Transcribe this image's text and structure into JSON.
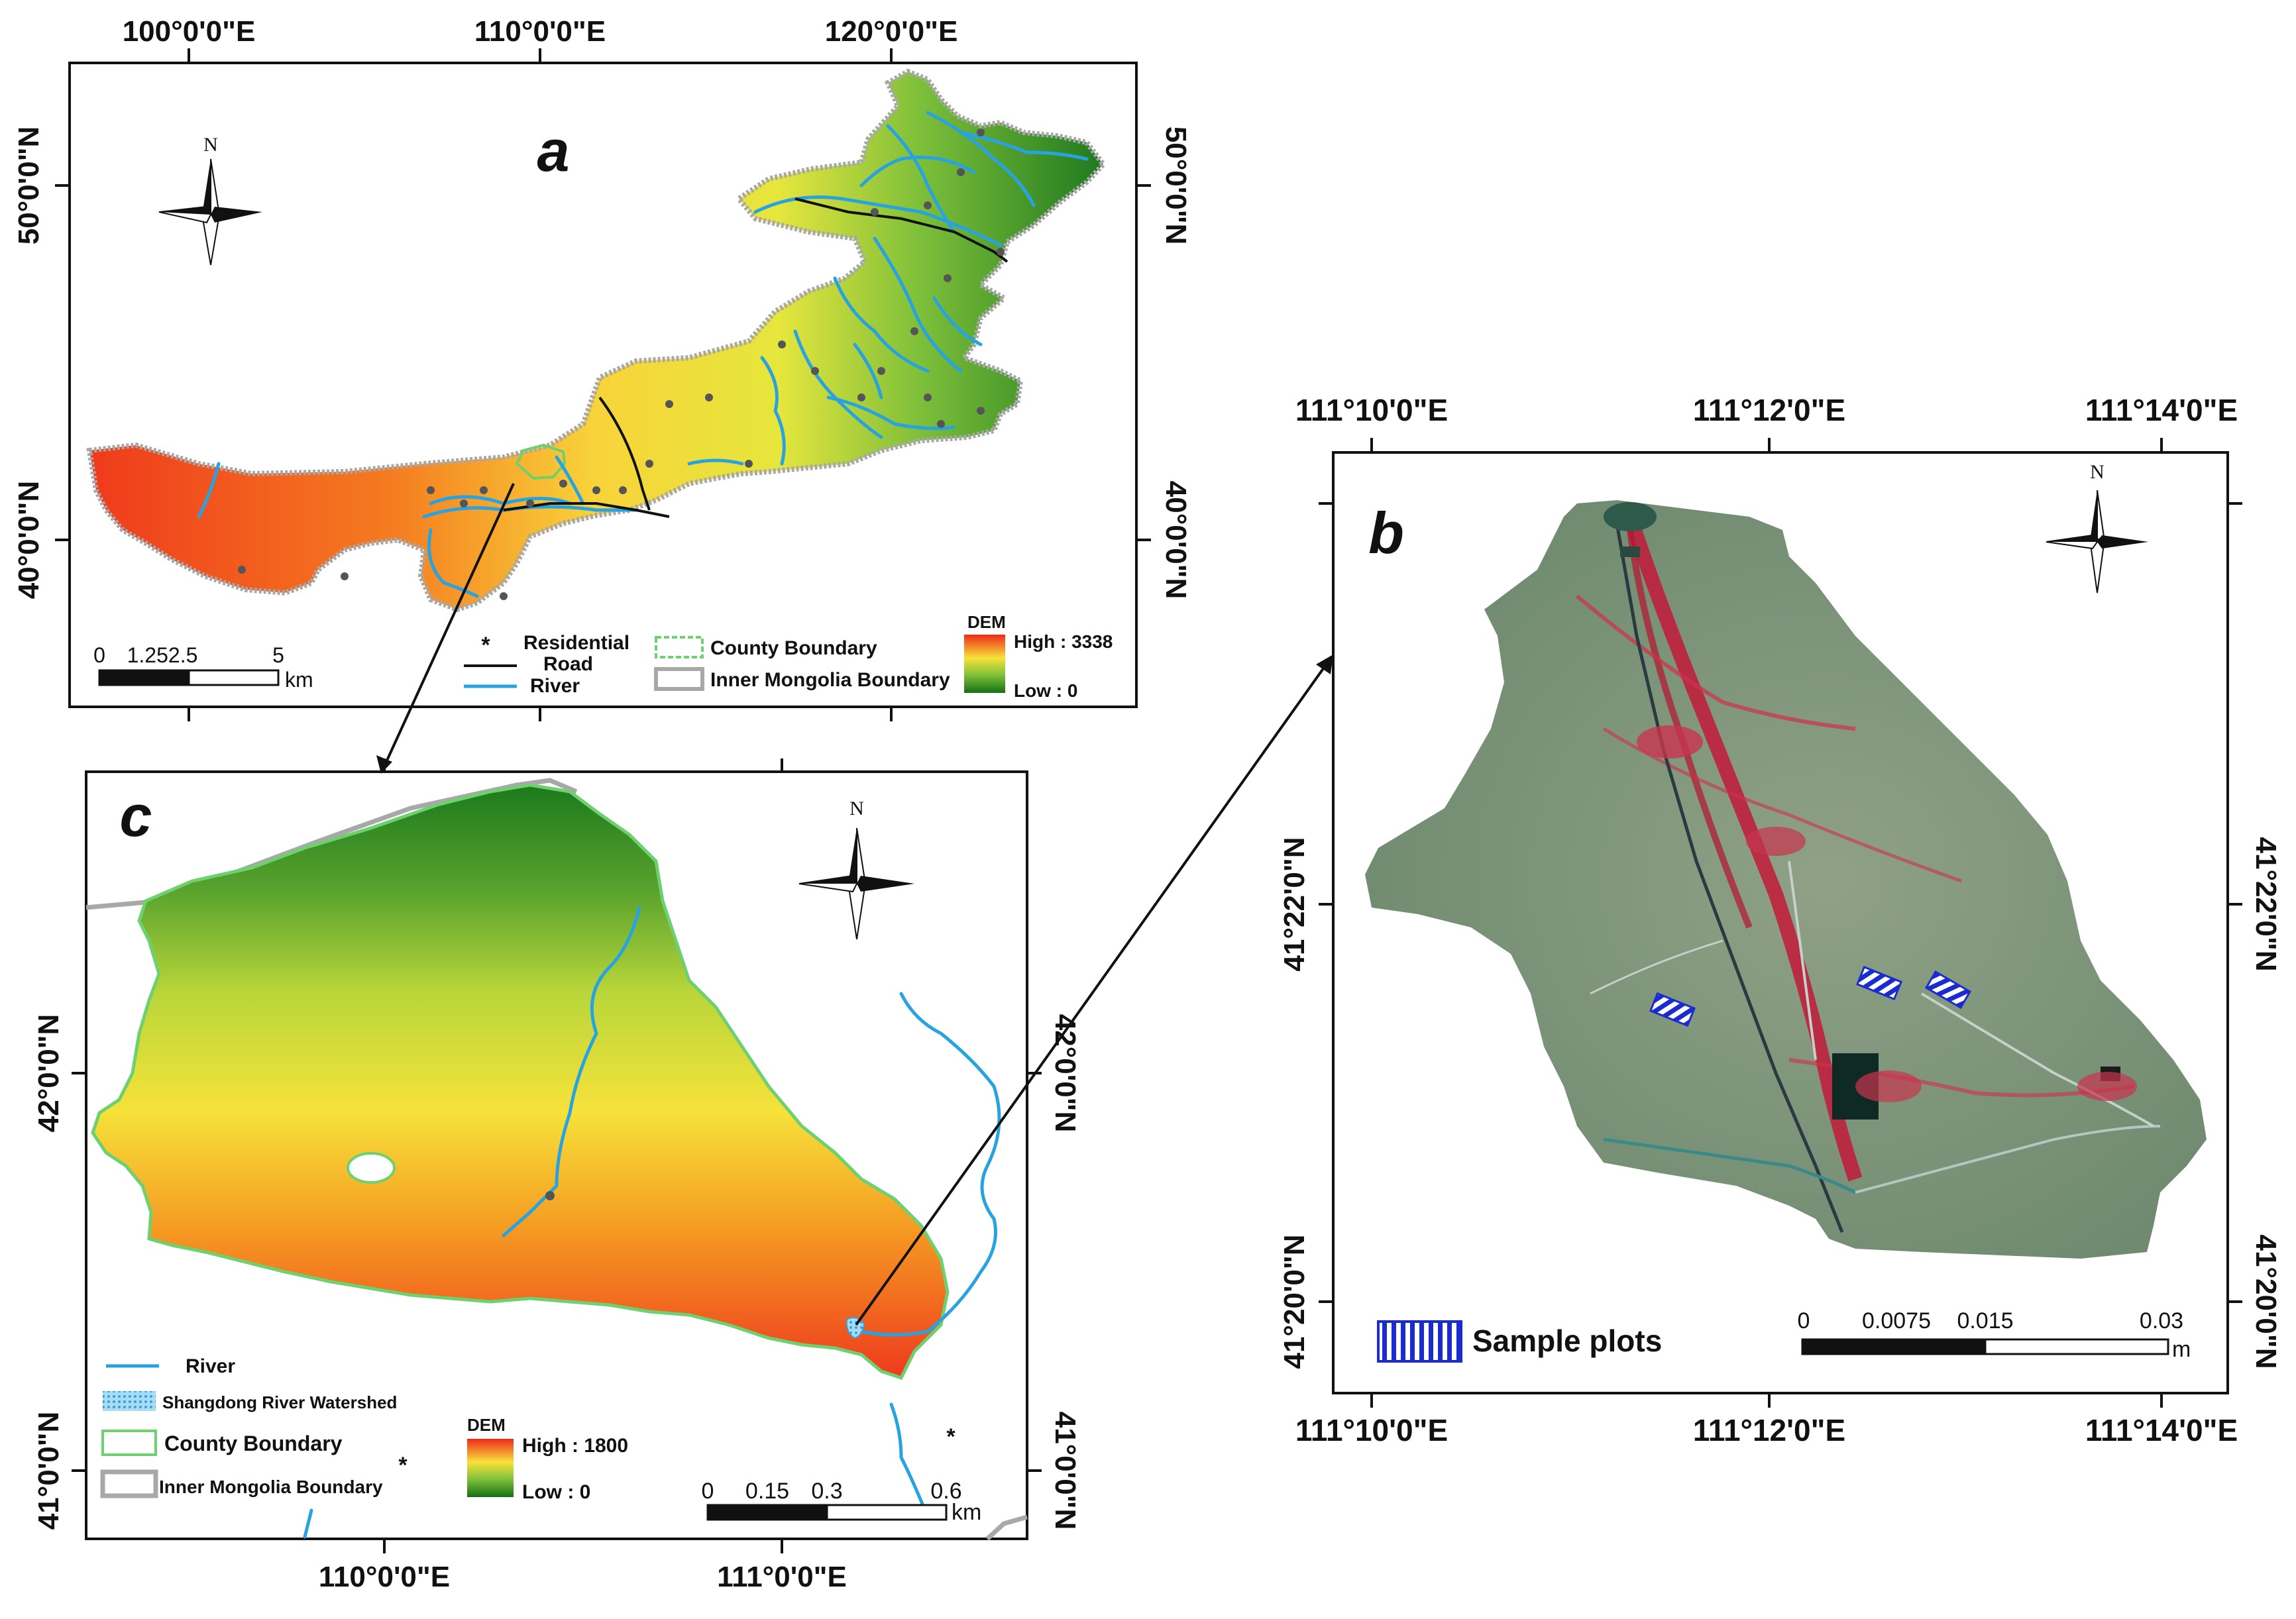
{
  "panel_a": {
    "label": "a",
    "lon_ticks": [
      "100°0'0\"E",
      "110°0'0\"E",
      "120°0'0\"E"
    ],
    "lat_ticks": [
      "40°0'0\"N",
      "50°0'0\"N"
    ],
    "north": "N",
    "scale": {
      "values": [
        "0",
        "1.252.5",
        "5"
      ],
      "unit": "km"
    },
    "legend": {
      "residential": "Residential",
      "road": "Road",
      "river": "River",
      "county": "County Boundary",
      "inner_mongolia": "Inner Mongolia Boundary",
      "dem_title": "DEM",
      "dem_high": "High : 3338",
      "dem_low": "Low : 0"
    }
  },
  "panel_c": {
    "label": "c",
    "lon_ticks": [
      "110°0'0\"E",
      "111°0'0\"E"
    ],
    "lat_ticks": [
      "41°0'0\"N",
      "42°0'0\"N"
    ],
    "north": "N",
    "scale": {
      "values": [
        "0",
        "0.15",
        "0.3",
        "0.6"
      ],
      "unit": "km"
    },
    "legend": {
      "river": "River",
      "watershed": "Shangdong River Watershed",
      "county": "County Boundary",
      "inner_mongolia": "Inner Mongolia Boundary",
      "dem_title": "DEM",
      "dem_high": "High : 1800",
      "dem_low": "Low : 0"
    }
  },
  "panel_b": {
    "label": "b",
    "lon_ticks": [
      "111°10'0\"E",
      "111°12'0\"E",
      "111°14'0\"E"
    ],
    "lat_ticks": [
      "41°20'0\"N",
      "41°22'0\"N"
    ],
    "north": "N",
    "scale": {
      "values": [
        "0",
        "0.0075",
        "0.015",
        "0.03"
      ],
      "unit": "m"
    },
    "legend": {
      "sample_plots": "Sample plots"
    }
  },
  "colors": {
    "dem_high": "#e8321e",
    "dem_mid": "#f6e83a",
    "dem_low": "#1f7a1f",
    "river": "#29a3e0",
    "county_boundary": "#6fd06f",
    "inner_mongolia_boundary": "#a8a8a8",
    "sample_plot": "#1a2bd0",
    "false_color_base": "#7f9878",
    "false_color_veg": "#d4203c"
  }
}
